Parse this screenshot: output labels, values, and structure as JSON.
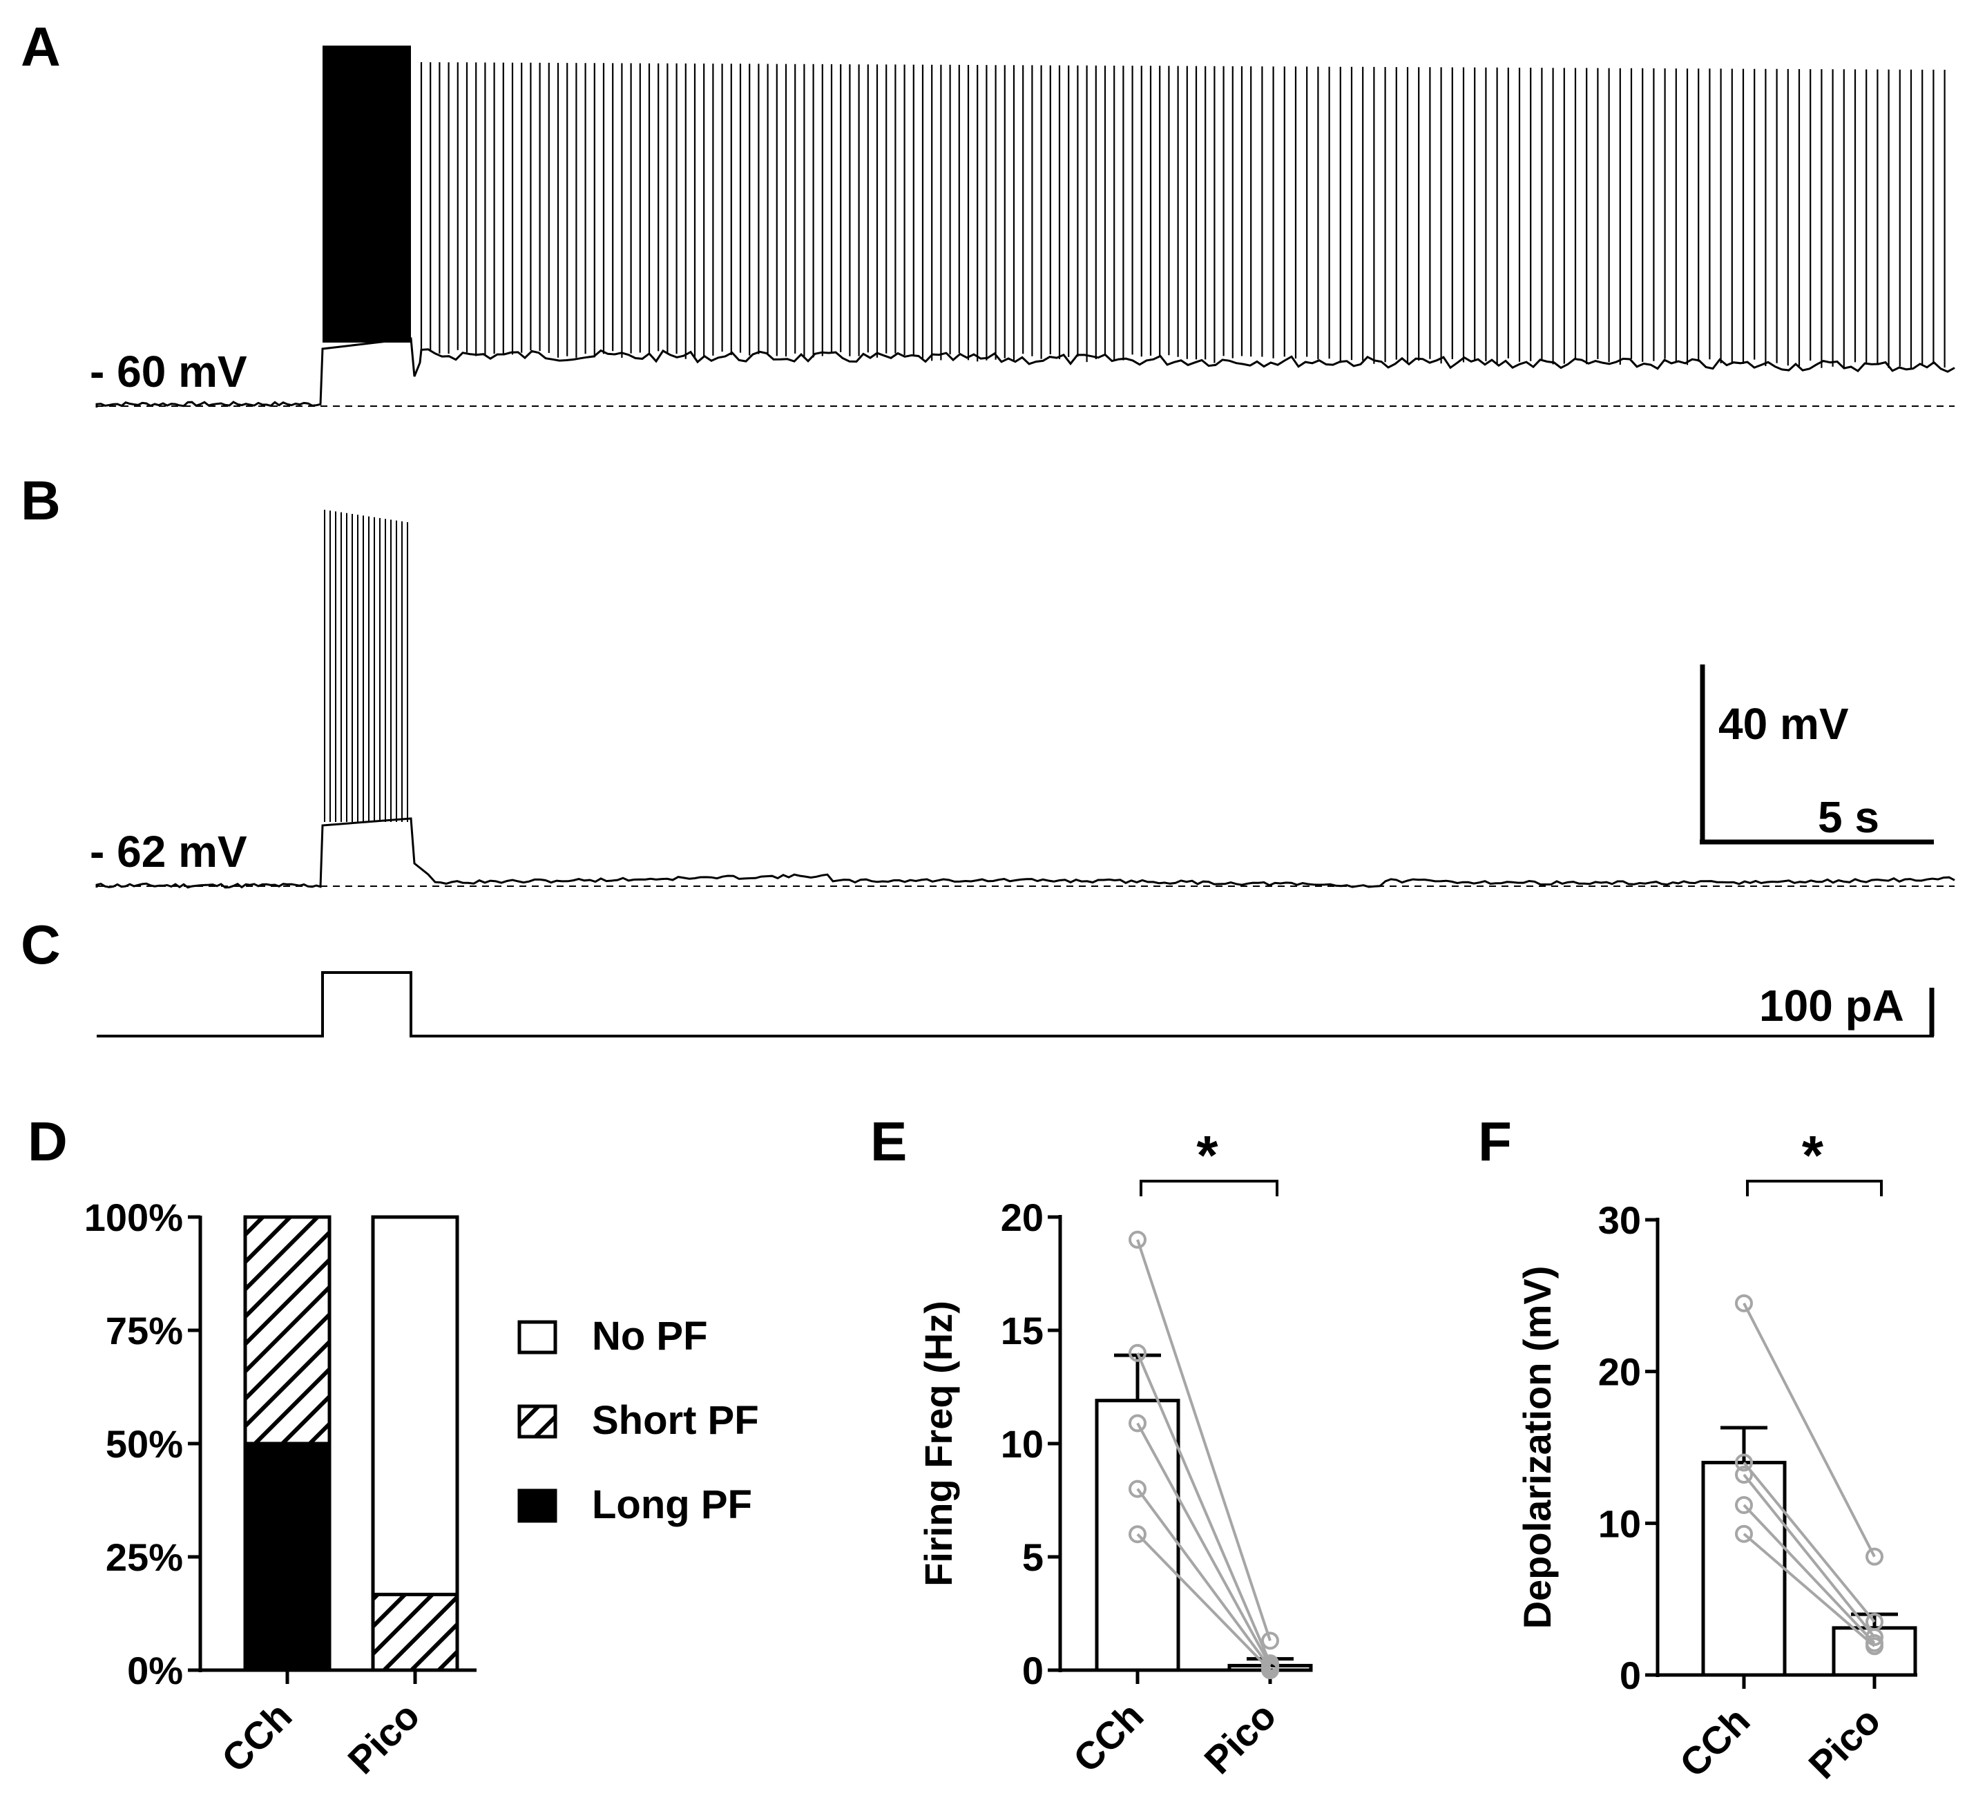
{
  "panels": {
    "A": {
      "letter": "A",
      "baseline_label": "- 60 mV"
    },
    "B": {
      "letter": "B",
      "baseline_label": "- 62 mV"
    },
    "C": {
      "letter": "C"
    },
    "D": {
      "letter": "D"
    },
    "E": {
      "letter": "E"
    },
    "F": {
      "letter": "F"
    }
  },
  "scale_bars": {
    "voltage": "40 mV",
    "time": "5 s",
    "current": "100 pA"
  },
  "chart_data": [
    {
      "panel": "D",
      "type": "bar",
      "stacked": true,
      "categories": [
        "CCh",
        "Pico"
      ],
      "series": [
        {
          "name": "Long PF",
          "values": [
            50,
            0
          ],
          "pattern": "solid-black"
        },
        {
          "name": "Short PF",
          "values": [
            50,
            16.7
          ],
          "pattern": "diagonal-hatch"
        },
        {
          "name": "No PF",
          "values": [
            0,
            83.3
          ],
          "pattern": "white"
        }
      ],
      "yticks": [
        "0%",
        "25%",
        "50%",
        "75%",
        "100%"
      ],
      "ylim": [
        0,
        100
      ],
      "legend_placement": "right"
    },
    {
      "panel": "E",
      "type": "bar",
      "categories": [
        "CCh",
        "Pico"
      ],
      "means": [
        11.9,
        0.2
      ],
      "sem": [
        2.0,
        0.3
      ],
      "paired_points": [
        [
          19.0,
          1.3
        ],
        [
          14.0,
          0.3
        ],
        [
          10.9,
          0.2
        ],
        [
          8.0,
          0.1
        ],
        [
          6.0,
          0.0
        ]
      ],
      "ylabel": "Firing Freq (Hz)",
      "yticks": [
        "0",
        "5",
        "10",
        "15",
        "20"
      ],
      "ylim": [
        0,
        20
      ],
      "significance": "*"
    },
    {
      "panel": "F",
      "type": "bar",
      "categories": [
        "CCh",
        "Pico"
      ],
      "means": [
        14.0,
        3.1
      ],
      "sem": [
        2.3,
        0.9
      ],
      "paired_points": [
        [
          24.5,
          7.8
        ],
        [
          14.0,
          3.5
        ],
        [
          13.2,
          2.5
        ],
        [
          11.2,
          2.1
        ],
        [
          9.3,
          1.9
        ]
      ],
      "ylabel": "Depolarization (mV)",
      "yticks": [
        "0",
        "10",
        "20",
        "30"
      ],
      "ylim": [
        0,
        30
      ],
      "significance": "*"
    }
  ]
}
